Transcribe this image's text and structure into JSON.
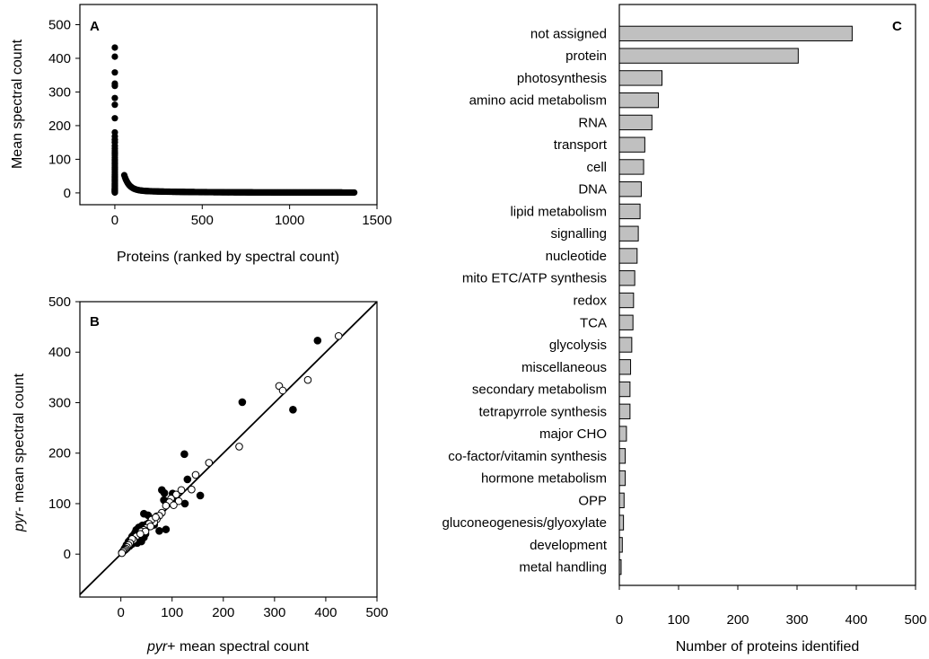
{
  "chart_data": [
    {
      "panel_label": "A",
      "type": "scatter",
      "title": "",
      "xlabel": "Proteins (ranked by spectral count)",
      "ylabel": "Mean spectral count",
      "xlim": [
        -200,
        1500
      ],
      "ylim": [
        -35,
        560
      ],
      "xticks": [
        0,
        500,
        1000,
        1500
      ],
      "yticks": [
        0,
        100,
        200,
        300,
        400,
        500
      ],
      "x_range": [
        0,
        1370
      ],
      "y_top_values": [
        432,
        405,
        358,
        325,
        318,
        282,
        262,
        222,
        180,
        168,
        158,
        150,
        140,
        132,
        125,
        118,
        112,
        105,
        98,
        92,
        86,
        80,
        75,
        70,
        65,
        60,
        55,
        50,
        46,
        42,
        38,
        35,
        32,
        29,
        27,
        25,
        23,
        21,
        19,
        17,
        15,
        13,
        12,
        11,
        10,
        9,
        8,
        7,
        6,
        5,
        4,
        3,
        2,
        1
      ],
      "grid": false
    },
    {
      "panel_label": "B",
      "type": "scatter",
      "title": "",
      "xlabel_italic": "pyr",
      "xlabel_rest": "+ mean spectral count",
      "ylabel_italic": "pyr",
      "ylabel_rest": "- mean spectral count",
      "xlim": [
        -80,
        500
      ],
      "ylim": [
        -85,
        500
      ],
      "xticks": [
        0,
        100,
        200,
        300,
        400,
        500
      ],
      "yticks": [
        0,
        100,
        200,
        300,
        400,
        500
      ],
      "identity_line": true,
      "grid": false,
      "series": [
        {
          "marker": "filled",
          "points": [
            [
              384,
              423
            ],
            [
              237,
              301
            ],
            [
              336,
              286
            ],
            [
              124,
              198
            ],
            [
              155,
              116
            ],
            [
              88,
              49
            ],
            [
              130,
              148
            ],
            [
              80,
              127
            ],
            [
              85,
              121
            ],
            [
              106,
              113
            ],
            [
              101,
              120
            ],
            [
              84,
              107
            ],
            [
              92,
              104
            ],
            [
              125,
              100
            ],
            [
              75,
              46
            ],
            [
              45,
              80
            ],
            [
              53,
              77
            ],
            [
              60,
              70
            ],
            [
              50,
              59
            ],
            [
              42,
              57
            ],
            [
              35,
              53
            ],
            [
              30,
              48
            ],
            [
              28,
              43
            ],
            [
              25,
              38
            ],
            [
              22,
              35
            ],
            [
              20,
              30
            ],
            [
              18,
              28
            ],
            [
              15,
              25
            ],
            [
              13,
              20
            ],
            [
              11,
              18
            ],
            [
              10,
              15
            ],
            [
              8,
              12
            ],
            [
              7,
              10
            ],
            [
              6,
              8
            ],
            [
              5,
              6
            ],
            [
              4,
              5
            ],
            [
              3,
              4
            ],
            [
              2,
              3
            ],
            [
              45,
              33
            ],
            [
              40,
              30
            ],
            [
              35,
              28
            ],
            [
              28,
              24
            ],
            [
              22,
              20
            ],
            [
              17,
              16
            ],
            [
              12,
              12
            ],
            [
              9,
              9
            ],
            [
              6,
              7
            ],
            [
              38,
              50
            ],
            [
              48,
              40
            ],
            [
              55,
              62
            ],
            [
              65,
              58
            ],
            [
              70,
              75
            ],
            [
              32,
              22
            ],
            [
              40,
              25
            ]
          ]
        },
        {
          "marker": "open",
          "points": [
            [
              425,
              432
            ],
            [
              309,
              333
            ],
            [
              316,
              324
            ],
            [
              365,
              345
            ],
            [
              231,
              213
            ],
            [
              172,
              181
            ],
            [
              146,
              157
            ],
            [
              138,
              128
            ],
            [
              118,
              127
            ],
            [
              108,
              118
            ],
            [
              98,
              110
            ],
            [
              95,
              103
            ],
            [
              88,
              96
            ],
            [
              80,
              82
            ],
            [
              75,
              76
            ],
            [
              70,
              69
            ],
            [
              65,
              63
            ],
            [
              60,
              68
            ],
            [
              55,
              60
            ],
            [
              50,
              52
            ],
            [
              45,
              48
            ],
            [
              40,
              45
            ],
            [
              35,
              38
            ],
            [
              30,
              35
            ],
            [
              25,
              28
            ],
            [
              22,
              30
            ],
            [
              18,
              22
            ],
            [
              15,
              18
            ],
            [
              12,
              14
            ],
            [
              10,
              11
            ],
            [
              8,
              9
            ],
            [
              6,
              7
            ],
            [
              4,
              5
            ],
            [
              2,
              2
            ],
            [
              113,
              105
            ],
            [
              103,
              97
            ],
            [
              68,
              73
            ],
            [
              58,
              55
            ],
            [
              48,
              45
            ],
            [
              38,
              40
            ]
          ]
        }
      ]
    },
    {
      "panel_label": "C",
      "type": "bar",
      "orientation": "horizontal",
      "title": "",
      "xlabel": "Number of proteins identified",
      "ylabel": "",
      "xlim": [
        0,
        500
      ],
      "xticks": [
        0,
        100,
        200,
        300,
        400,
        500
      ],
      "bar_color": "#c0c0c0",
      "grid": false,
      "categories": [
        "not assigned",
        "protein",
        "photosynthesis",
        "amino acid metabolism",
        "RNA",
        "transport",
        "cell",
        "DNA",
        "lipid metabolism",
        "signalling",
        "nucleotide",
        "mito ETC/ATP synthesis",
        "redox",
        "TCA",
        "glycolysis",
        "miscellaneous",
        "secondary metabolism",
        "tetrapyrrole synthesis",
        "major CHO",
        "co-factor/vitamin synthesis",
        "hormone metabolism",
        "OPP",
        "gluconeogenesis/glyoxylate",
        "development",
        "metal handling"
      ],
      "values": [
        393,
        302,
        72,
        66,
        55,
        43,
        41,
        37,
        35,
        32,
        30,
        26,
        24,
        23,
        21,
        19,
        18,
        18,
        12,
        10,
        10,
        8,
        7,
        5,
        3
      ]
    }
  ]
}
